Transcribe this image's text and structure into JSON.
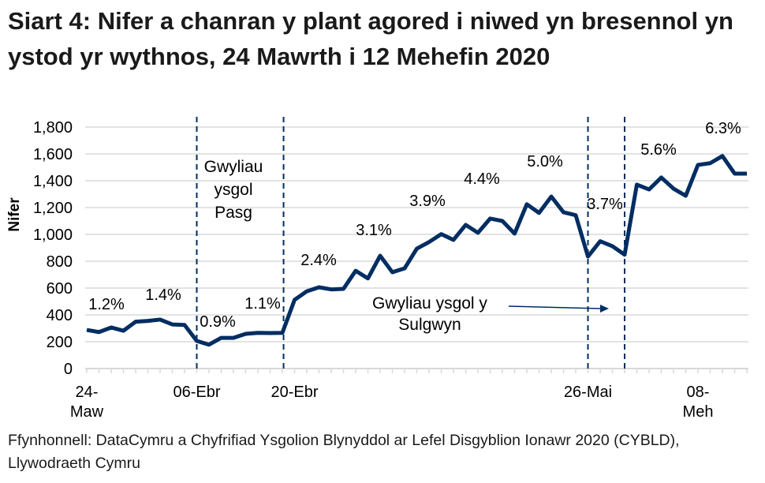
{
  "chart_data": {
    "type": "line",
    "title": "Siart 4: Nifer a chanran y plant agored i niwed yn bresennol yn ystod yr wythnos, 24 Mawrth i 12 Mehefin 2020",
    "ylabel": "Nifer",
    "xlabel": "",
    "ylim": [
      0,
      1800
    ],
    "yticks": [
      "0",
      "200",
      "400",
      "600",
      "800",
      "1,000",
      "1,200",
      "1,400",
      "1,600",
      "1,800"
    ],
    "grid": true,
    "line_color": "#002D62",
    "x_tick_labels": [
      {
        "index": 0,
        "lines": [
          "24-",
          "Maw"
        ]
      },
      {
        "index": 9,
        "lines": [
          "06-Ebr"
        ]
      },
      {
        "index": 17,
        "lines": [
          "20-Ebr"
        ]
      },
      {
        "index": 41,
        "lines": [
          "26-Mai"
        ]
      },
      {
        "index": 50,
        "lines": [
          "08-",
          "Meh"
        ]
      }
    ],
    "values": [
      288,
      272,
      306,
      282,
      349,
      355,
      365,
      329,
      325,
      206,
      178,
      229,
      229,
      259,
      266,
      265,
      266,
      512,
      576,
      606,
      590,
      594,
      729,
      672,
      841,
      718,
      747,
      894,
      943,
      1002,
      959,
      1071,
      1012,
      1118,
      1100,
      1006,
      1225,
      1160,
      1282,
      1165,
      1143,
      835,
      949,
      912,
      849,
      1371,
      1335,
      1424,
      1341,
      1288,
      1518,
      1531,
      1584,
      1453,
      1453
    ],
    "percent_labels": [
      "1.2%",
      "1.4%",
      "0.9%",
      "1.1%",
      "2.4%",
      "3.1%",
      "3.9%",
      "4.4%",
      "5.0%",
      "3.7%",
      "5.6%",
      "6.3%"
    ],
    "holiday_lines": [
      9,
      16.1,
      41,
      44
    ],
    "annotations": {
      "easter": [
        "Gwyliau",
        "ysgol",
        "Pasg"
      ],
      "whitsun": [
        "Gwyliau ysgol y",
        "Sulgwyn"
      ]
    }
  },
  "source": "Ffynhonnell: DataCymru a Chyfrifiad Ysgolion Blynyddol ar Lefel Disgyblion Ionawr 2020 (CYBLD), Llywodraeth Cymru"
}
